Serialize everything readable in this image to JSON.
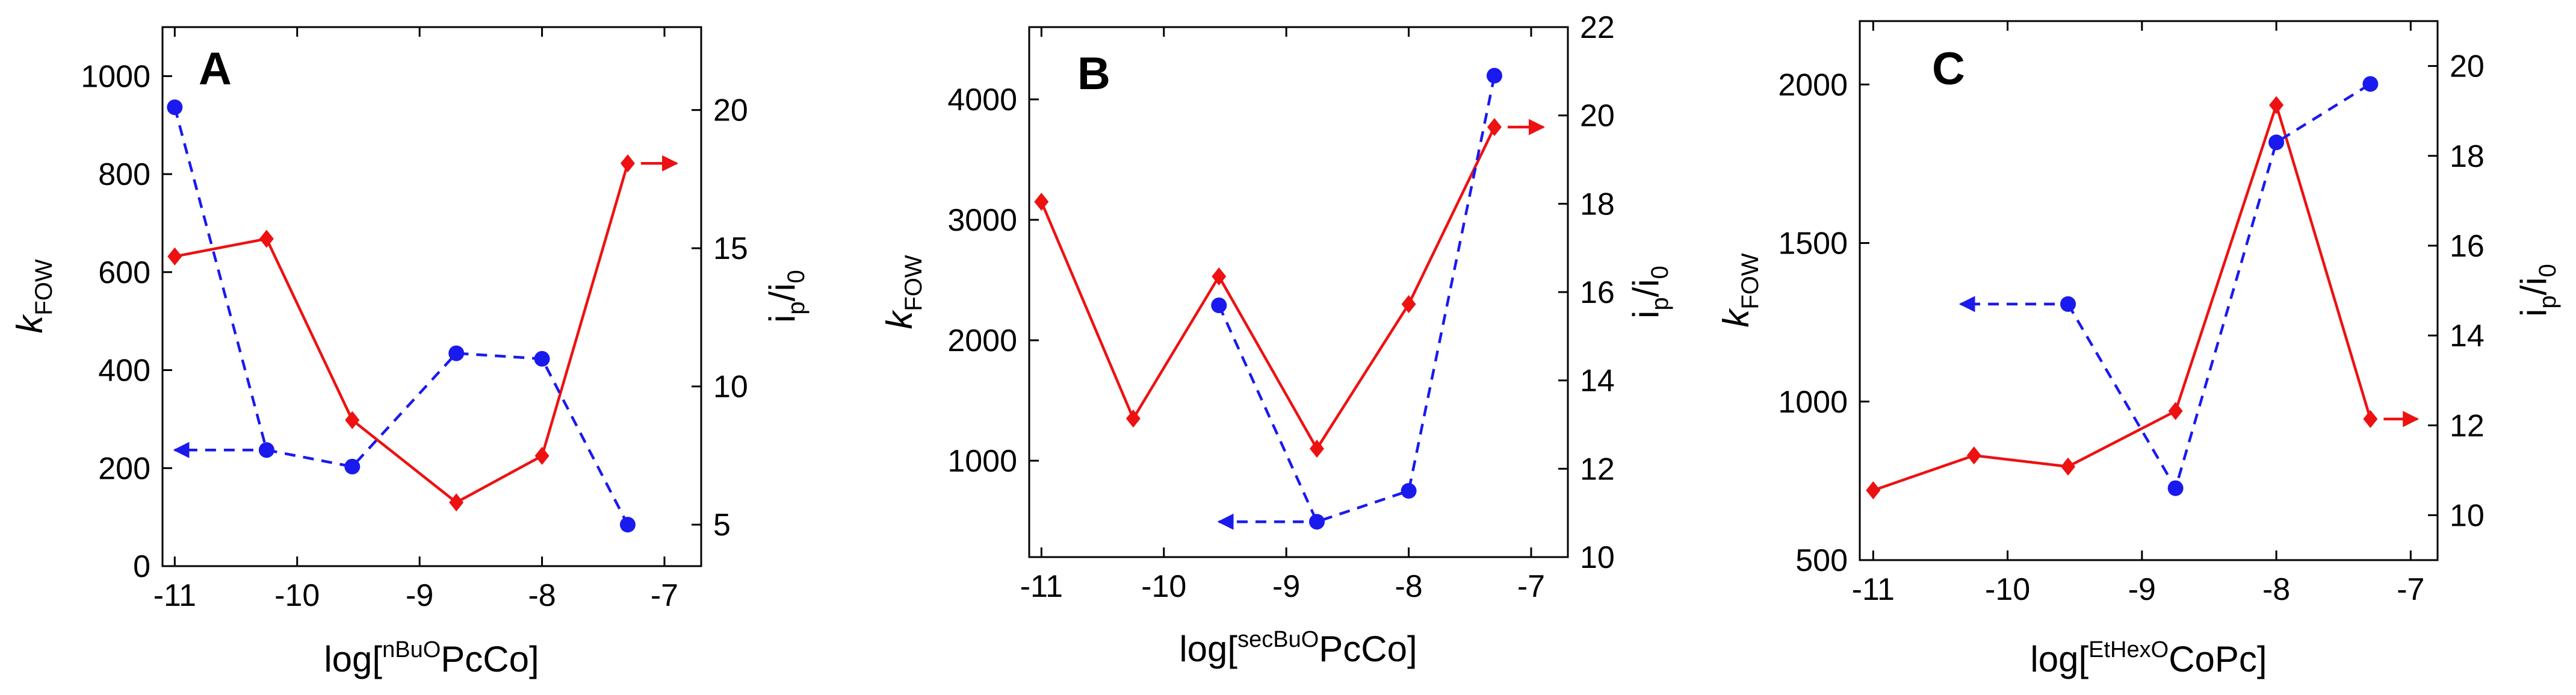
{
  "colors": {
    "red": "#ee1111",
    "blue": "#1a1aee",
    "axis": "#000000"
  },
  "chart_data": [
    {
      "type": "line",
      "panel_label": "A",
      "x_ticks": [
        -11,
        -10,
        -9,
        -8,
        -7
      ],
      "xlim": [
        -11.1,
        -6.7
      ],
      "xlabel": {
        "prefix": "log[",
        "sup": "nBuO",
        "main": "PcCo",
        "suffix": "]"
      },
      "ylabel_left": {
        "main": "k",
        "sub": "FOW"
      },
      "ylabel_right": {
        "i": "i",
        "p": "p",
        "slash": "/i",
        "zero": "0"
      },
      "ylim_left": [
        0,
        1100
      ],
      "yticks_left": [
        0,
        200,
        400,
        600,
        800,
        1000
      ],
      "ylim_right": [
        3.5,
        23
      ],
      "yticks_right": [
        5,
        10,
        15,
        20
      ],
      "series": [
        {
          "name": "kFOW",
          "axis": "left",
          "style": "solid",
          "marker": "diamond",
          "x": [
            -11,
            -10.25,
            -9.55,
            -8.7,
            -8,
            -7.3
          ],
          "values": [
            632,
            668,
            298,
            130,
            225,
            822
          ]
        },
        {
          "name": "ip/i0",
          "axis": "right",
          "style": "dashed",
          "marker": "circle",
          "x": [
            -11,
            -10.25,
            -9.55,
            -8.7,
            -8,
            -7.3
          ],
          "values": [
            20.1,
            7.7,
            7.1,
            11.2,
            11.0,
            5.0
          ]
        }
      ],
      "arrows": [
        {
          "series": "ip/i0",
          "direction": "left",
          "from_x": -10.25,
          "to_x": -11.0,
          "value": 7.7
        },
        {
          "series": "kFOW",
          "direction": "right",
          "from_x": -7.3,
          "to_x": -6.9,
          "value": 822
        }
      ]
    },
    {
      "type": "line",
      "panel_label": "B",
      "x_ticks": [
        -11,
        -10,
        -9,
        -8,
        -7
      ],
      "xlim": [
        -11.1,
        -6.7
      ],
      "xlabel": {
        "prefix": "log[",
        "sup": "secBuO",
        "main": "PcCo",
        "suffix": "]"
      },
      "ylabel_left": {
        "main": "k",
        "sub": "FOW"
      },
      "ylabel_right": {
        "i": "i",
        "p": "p",
        "slash": "/i",
        "zero": "0"
      },
      "ylim_left": [
        200,
        4600
      ],
      "yticks_left": [
        1000,
        2000,
        3000,
        4000
      ],
      "ylim_right": [
        10,
        22
      ],
      "yticks_right": [
        10,
        12,
        14,
        16,
        18,
        20,
        22
      ],
      "series": [
        {
          "name": "kFOW",
          "axis": "left",
          "style": "solid",
          "marker": "diamond",
          "x": [
            -11,
            -10.25,
            -9.55,
            -8.75,
            -8,
            -7.3
          ],
          "values": [
            3150,
            1350,
            2530,
            1100,
            2300,
            3770
          ]
        },
        {
          "name": "ip/i0",
          "axis": "right",
          "style": "dashed",
          "marker": "circle",
          "x": [
            -9.55,
            -8.75,
            -8,
            -7.3
          ],
          "values": [
            15.7,
            10.8,
            11.5,
            20.9
          ]
        }
      ],
      "arrows": [
        {
          "series": "ip/i0",
          "direction": "left",
          "from_x": -8.75,
          "to_x": -9.55,
          "value": 10.8
        },
        {
          "series": "kFOW",
          "direction": "right",
          "from_x": -7.3,
          "to_x": -6.9,
          "value": 3770
        }
      ]
    },
    {
      "type": "line",
      "panel_label": "C",
      "x_ticks": [
        -11,
        -10,
        -9,
        -8,
        -7
      ],
      "xlim": [
        -11.1,
        -6.8
      ],
      "xlabel": {
        "prefix": "log[",
        "sup": "EtHexO",
        "main": "CoPc",
        "suffix": "]"
      },
      "ylabel_left": {
        "main": "k",
        "sub": "FOW"
      },
      "ylabel_right": {
        "i": "i",
        "p": "p",
        "slash": "/i",
        "zero": "0"
      },
      "ylim_left": [
        500,
        2200
      ],
      "yticks_left": [
        500,
        1000,
        1500,
        2000
      ],
      "ylim_right": [
        9,
        21
      ],
      "yticks_right": [
        10,
        12,
        14,
        16,
        18,
        20
      ],
      "series": [
        {
          "name": "kFOW",
          "axis": "left",
          "style": "solid",
          "marker": "diamond",
          "x": [
            -11,
            -10.25,
            -9.55,
            -8.75,
            -8,
            -7.3
          ],
          "values": [
            720,
            830,
            795,
            970,
            1935,
            945
          ]
        },
        {
          "name": "ip/i0",
          "axis": "right",
          "style": "dashed",
          "marker": "circle",
          "x": [
            -9.55,
            -8.75,
            -8,
            -7.3
          ],
          "values": [
            14.7,
            10.6,
            18.3,
            19.6
          ]
        }
      ],
      "arrows": [
        {
          "series": "ip/i0",
          "direction": "left",
          "from_x": -9.55,
          "to_x": -10.35,
          "value": 14.7
        },
        {
          "series": "kFOW",
          "direction": "right",
          "from_x": -7.3,
          "to_x": -6.95,
          "value": 945
        }
      ]
    }
  ]
}
